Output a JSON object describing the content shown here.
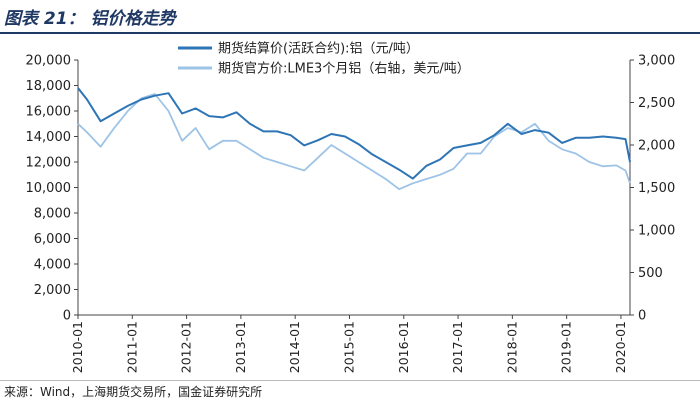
{
  "header": {
    "title": "图表 21：  铝价格走势"
  },
  "source": {
    "text": "来源：Wind，上海期货交易所，国金证券研究所"
  },
  "chart_data": {
    "type": "line",
    "title": "",
    "xlabel": "",
    "categories": [
      "2010-01",
      "2011-01",
      "2012-01",
      "2013-01",
      "2014-01",
      "2015-01",
      "2016-01",
      "2017-01",
      "2018-01",
      "2019-01",
      "2020-01"
    ],
    "y_left": {
      "lim": [
        0,
        20000
      ],
      "ticks": [
        "0",
        "2,000",
        "4,000",
        "6,000",
        "8,000",
        "10,000",
        "12,000",
        "14,000",
        "16,000",
        "18,000",
        "20,000"
      ]
    },
    "y_right": {
      "lim": [
        0,
        3000
      ],
      "ticks": [
        "0",
        "500",
        "1,000",
        "1,500",
        "2,000",
        "2,500",
        "3,000"
      ]
    },
    "grid": false,
    "legend_position": "top-center",
    "series": [
      {
        "name": "期货结算价(活跃合约):铝（元/吨）",
        "axis": "left",
        "color": "#2e75b6",
        "x": [
          "2010-01",
          "2010-03",
          "2010-06",
          "2010-09",
          "2010-12",
          "2011-03",
          "2011-06",
          "2011-09",
          "2011-12",
          "2012-03",
          "2012-06",
          "2012-09",
          "2012-12",
          "2013-03",
          "2013-06",
          "2013-09",
          "2013-12",
          "2014-03",
          "2014-06",
          "2014-09",
          "2014-12",
          "2015-03",
          "2015-06",
          "2015-09",
          "2015-12",
          "2016-03",
          "2016-06",
          "2016-09",
          "2016-12",
          "2017-03",
          "2017-06",
          "2017-09",
          "2017-12",
          "2018-03",
          "2018-06",
          "2018-09",
          "2018-12",
          "2019-03",
          "2019-06",
          "2019-09",
          "2019-12",
          "2020-02",
          "2020-03"
        ],
        "values": [
          17800,
          16900,
          15200,
          15800,
          16400,
          16900,
          17200,
          17400,
          15800,
          16200,
          15600,
          15500,
          15900,
          15000,
          14400,
          14400,
          14100,
          13300,
          13700,
          14200,
          14000,
          13400,
          12600,
          12000,
          11400,
          10700,
          11700,
          12200,
          13100,
          13300,
          13500,
          14100,
          15000,
          14200,
          14500,
          14300,
          13500,
          13900,
          13900,
          14000,
          13900,
          13800,
          12000
        ]
      },
      {
        "name": "期货官方价:LME3个月铝（右轴，美元/吨）",
        "axis": "right",
        "color": "#9dc3e6",
        "x": [
          "2010-01",
          "2010-03",
          "2010-06",
          "2010-09",
          "2010-12",
          "2011-03",
          "2011-06",
          "2011-09",
          "2011-12",
          "2012-03",
          "2012-06",
          "2012-09",
          "2012-12",
          "2013-03",
          "2013-06",
          "2013-09",
          "2013-12",
          "2014-03",
          "2014-06",
          "2014-09",
          "2014-12",
          "2015-03",
          "2015-06",
          "2015-09",
          "2015-12",
          "2016-03",
          "2016-06",
          "2016-09",
          "2016-12",
          "2017-03",
          "2017-06",
          "2017-09",
          "2017-12",
          "2018-03",
          "2018-06",
          "2018-09",
          "2018-12",
          "2019-03",
          "2019-06",
          "2019-09",
          "2019-12",
          "2020-02",
          "2020-03"
        ],
        "values": [
          2250,
          2150,
          1980,
          2200,
          2400,
          2550,
          2600,
          2400,
          2050,
          2200,
          1950,
          2050,
          2050,
          1950,
          1850,
          1800,
          1750,
          1700,
          1850,
          2000,
          1900,
          1800,
          1700,
          1600,
          1480,
          1550,
          1600,
          1650,
          1720,
          1900,
          1900,
          2100,
          2200,
          2150,
          2250,
          2050,
          1950,
          1900,
          1800,
          1750,
          1760,
          1700,
          1550
        ]
      }
    ]
  }
}
